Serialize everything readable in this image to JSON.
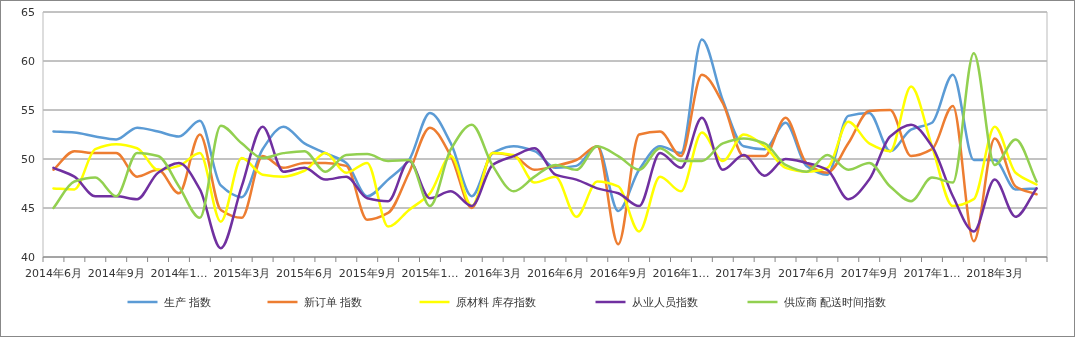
{
  "chart_data": {
    "type": "line",
    "categories": [
      "2014年6月",
      null,
      null,
      "2014年9月",
      null,
      null,
      "2014年1…",
      null,
      null,
      "2015年3月",
      null,
      null,
      "2015年6月",
      null,
      null,
      "2015年9月",
      null,
      null,
      "2015年1…",
      null,
      null,
      "2016年3月",
      null,
      null,
      "2016年6月",
      null,
      null,
      "2016年9月",
      null,
      null,
      "2016年1…",
      null,
      null,
      "2017年3月",
      null,
      null,
      "2017年6月",
      null,
      null,
      "2017年9月",
      null,
      null,
      "2017年1…",
      null,
      null,
      "2018年3月",
      null,
      null
    ],
    "series": [
      {
        "name": "生产 指数",
        "color": "#5b9bd5",
        "values": [
          52.8,
          52.7,
          52.3,
          52.0,
          53.2,
          52.8,
          52.3,
          53.9,
          47.3,
          46.1,
          51.0,
          53.3,
          51.6,
          50.6,
          49.6,
          46.2,
          47.9,
          49.9,
          54.7,
          51.6,
          46.2,
          50.6,
          51.3,
          50.8,
          49.1,
          49.3,
          51.3,
          44.7,
          48.9,
          51.3,
          50.6,
          62.2,
          56.0,
          51.3,
          51.0,
          53.7,
          49.3,
          48.4,
          54.4,
          54.7,
          50.8,
          53.0,
          53.7,
          58.6,
          49.9,
          49.9,
          46.9,
          47.0
        ]
      },
      {
        "name": "新订单 指数",
        "color": "#ed7d31",
        "values": [
          48.9,
          50.8,
          50.6,
          50.6,
          48.2,
          48.9,
          46.5,
          52.5,
          44.8,
          44.0,
          50.3,
          49.1,
          49.6,
          49.6,
          49.3,
          43.8,
          44.5,
          48.6,
          53.2,
          50.3,
          45.0,
          50.6,
          50.3,
          48.9,
          49.3,
          49.9,
          51.3,
          41.3,
          52.5,
          52.8,
          50.3,
          58.6,
          55.7,
          50.3,
          50.3,
          54.2,
          49.6,
          48.6,
          51.6,
          54.9,
          55.0,
          50.3,
          51.0,
          55.4,
          41.6,
          52.1,
          47.2,
          46.4
        ]
      },
      {
        "name": "原材料 库存指数",
        "color": "#ffff00",
        "values": [
          47.0,
          46.9,
          51.0,
          51.5,
          51.1,
          48.9,
          49.3,
          50.6,
          43.6,
          50.1,
          48.4,
          48.2,
          48.8,
          50.6,
          48.6,
          49.6,
          43.1,
          44.8,
          46.5,
          50.3,
          45.2,
          50.6,
          50.4,
          47.6,
          48.2,
          44.1,
          47.7,
          47.2,
          42.6,
          48.2,
          46.7,
          52.7,
          49.8,
          52.5,
          51.3,
          49.1,
          48.7,
          49.1,
          53.8,
          51.6,
          50.8,
          57.4,
          51.3,
          45.2,
          45.9,
          53.3,
          48.6,
          47.4
        ]
      },
      {
        "name": "从业人员指数",
        "color": "#7030a0",
        "values": [
          49.1,
          48.2,
          46.2,
          46.2,
          45.9,
          48.6,
          49.6,
          46.9,
          40.9,
          47.2,
          53.3,
          48.7,
          49.1,
          47.9,
          48.2,
          46.0,
          45.7,
          49.8,
          46.0,
          46.7,
          45.2,
          49.4,
          50.3,
          51.1,
          48.4,
          47.9,
          47.0,
          46.5,
          45.2,
          50.6,
          49.1,
          54.2,
          48.9,
          50.4,
          48.3,
          50.0,
          49.6,
          48.9,
          45.9,
          47.9,
          52.3,
          53.5,
          51.3,
          46.2,
          42.6,
          47.9,
          44.1,
          47.0
        ]
      },
      {
        "name": "供应商 配送时间指数",
        "color": "#92d050",
        "values": [
          45.0,
          47.7,
          48.1,
          46.2,
          50.6,
          50.3,
          47.2,
          44.0,
          53.4,
          51.6,
          50.1,
          50.6,
          50.8,
          48.7,
          50.4,
          50.5,
          49.8,
          49.9,
          45.2,
          51.0,
          53.5,
          49.3,
          46.7,
          48.2,
          49.4,
          48.9,
          51.3,
          50.3,
          48.9,
          51.1,
          49.8,
          49.8,
          51.6,
          52.1,
          51.6,
          49.4,
          48.7,
          50.4,
          48.9,
          49.6,
          47.2,
          45.7,
          48.1,
          47.6,
          60.8,
          49.4,
          52.0,
          47.7
        ]
      }
    ],
    "ylim": [
      40,
      65
    ],
    "yticks": [
      40,
      45,
      50,
      55,
      60,
      65
    ],
    "grid": "y",
    "legend": "bottom"
  }
}
